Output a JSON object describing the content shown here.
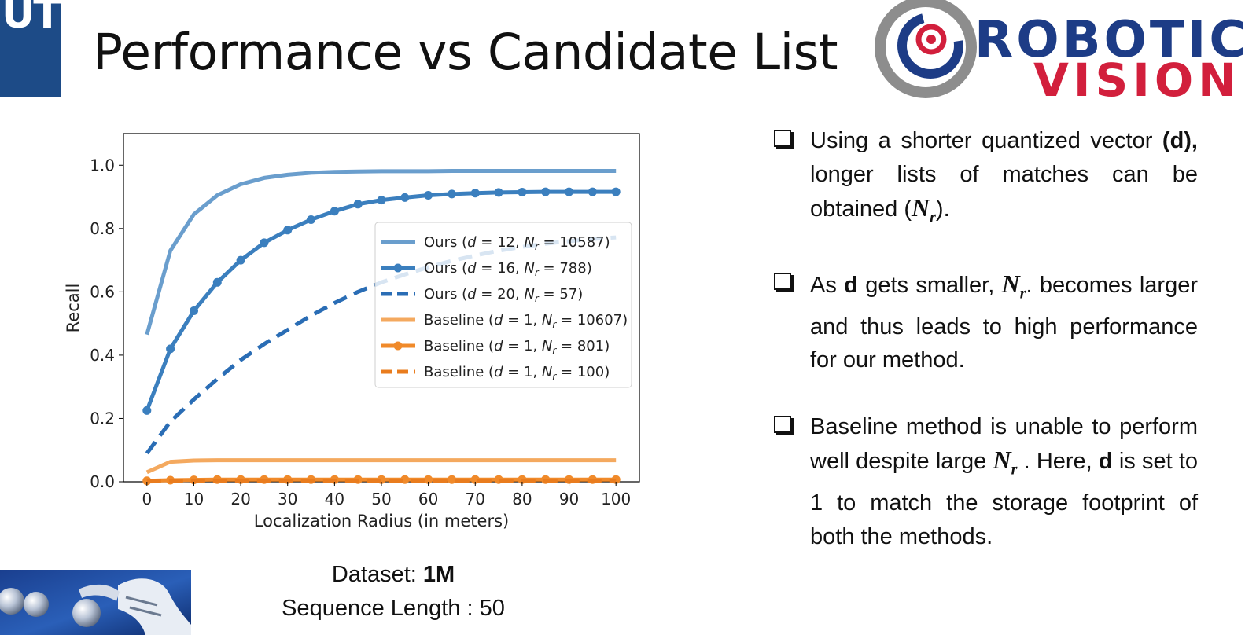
{
  "header": {
    "logo_text": "UT",
    "title": "Performance vs Candidate List",
    "brand_logo": {
      "line1": "ROBOTIC",
      "line2": "VISION",
      "colors": {
        "gray": "#8d8d8d",
        "navy": "#1d3c86",
        "red": "#d21f3c"
      }
    }
  },
  "chart_data": {
    "type": "line",
    "xlabel": "Localization Radius (in meters)",
    "ylabel": "Recall",
    "xlim": [
      -5,
      105
    ],
    "ylim": [
      0,
      1.1
    ],
    "xticks": [
      0,
      10,
      20,
      30,
      40,
      50,
      60,
      70,
      80,
      90,
      100
    ],
    "xtick_labels": [
      "0",
      "10",
      "20",
      "30",
      "40",
      "50",
      "60",
      "70",
      "80",
      "90",
      "100"
    ],
    "yticks": [
      0.0,
      0.2,
      0.4,
      0.6,
      0.8,
      1.0
    ],
    "ytick_labels": [
      "0.0",
      "0.2",
      "0.4",
      "0.6",
      "0.8",
      "1.0"
    ],
    "grid": false,
    "legend_position": "center-right",
    "x": [
      0,
      5,
      10,
      15,
      20,
      25,
      30,
      35,
      40,
      45,
      50,
      55,
      60,
      65,
      70,
      75,
      80,
      85,
      90,
      95,
      100
    ],
    "series": [
      {
        "name": "Ours (d = 12, Nr = 10587)",
        "legend": {
          "prefix": "Ours (",
          "d": "12",
          "n": "10587"
        },
        "color": "#6a9ecd",
        "style": "solid",
        "marker": false,
        "values": [
          0.465,
          0.73,
          0.845,
          0.905,
          0.94,
          0.96,
          0.97,
          0.976,
          0.979,
          0.98,
          0.981,
          0.981,
          0.981,
          0.982,
          0.982,
          0.982,
          0.982,
          0.982,
          0.982,
          0.982,
          0.982
        ]
      },
      {
        "name": "Ours (d = 16, Nr = 788)",
        "legend": {
          "prefix": "Ours (",
          "d": "16",
          "n": "788"
        },
        "color": "#3b7fbe",
        "style": "solid",
        "marker": true,
        "values": [
          0.225,
          0.42,
          0.54,
          0.63,
          0.7,
          0.755,
          0.795,
          0.828,
          0.855,
          0.877,
          0.89,
          0.898,
          0.905,
          0.909,
          0.912,
          0.914,
          0.915,
          0.916,
          0.916,
          0.916,
          0.916
        ]
      },
      {
        "name": "Ours (d = 20, Nr = 57)",
        "legend": {
          "prefix": "Ours (",
          "d": "20",
          "n": "57"
        },
        "color": "#2a6db5",
        "style": "dashed",
        "marker": false,
        "values": [
          0.09,
          0.19,
          0.26,
          0.325,
          0.385,
          0.435,
          0.48,
          0.525,
          0.565,
          0.6,
          0.63,
          0.655,
          0.678,
          0.698,
          0.715,
          0.73,
          0.742,
          0.752,
          0.76,
          0.767,
          0.772
        ]
      },
      {
        "name": "Baseline (d = 1, Nr = 10607)",
        "legend": {
          "prefix": "Baseline (",
          "d": "1",
          "n": "10607"
        },
        "color": "#f4a95f",
        "style": "solid",
        "marker": false,
        "values": [
          0.03,
          0.063,
          0.067,
          0.068,
          0.068,
          0.068,
          0.068,
          0.068,
          0.068,
          0.068,
          0.068,
          0.068,
          0.068,
          0.068,
          0.068,
          0.068,
          0.068,
          0.068,
          0.068,
          0.068,
          0.068
        ]
      },
      {
        "name": "Baseline (d = 1, Nr = 801)",
        "legend": {
          "prefix": "Baseline (",
          "d": "1",
          "n": "801"
        },
        "color": "#f08a2a",
        "style": "solid",
        "marker": true,
        "values": [
          0.003,
          0.005,
          0.006,
          0.007,
          0.007,
          0.007,
          0.007,
          0.007,
          0.007,
          0.007,
          0.007,
          0.007,
          0.007,
          0.007,
          0.007,
          0.007,
          0.007,
          0.007,
          0.007,
          0.007,
          0.007
        ]
      },
      {
        "name": "Baseline (d = 1, Nr = 100)",
        "legend": {
          "prefix": "Baseline (",
          "d": "1",
          "n": "100"
        },
        "color": "#e97c1e",
        "style": "dashed",
        "marker": false,
        "values": [
          0.001,
          0.002,
          0.002,
          0.002,
          0.002,
          0.002,
          0.002,
          0.002,
          0.002,
          0.002,
          0.002,
          0.002,
          0.002,
          0.002,
          0.002,
          0.002,
          0.002,
          0.002,
          0.002,
          0.002,
          0.002
        ]
      }
    ]
  },
  "bullets": [
    {
      "intro": "Using a shorter quantized vector",
      "bold": "(d),",
      "rest": "longer lists of matches can be obtained (",
      "nr_symbol": "N",
      "nr_sub": "r",
      "end": ")."
    },
    {
      "intro": "As",
      "bold": "d",
      "rest": "gets smaller,",
      "nr_symbol": "N",
      "nr_sub": "r",
      "end": ". becomes larger and thus leads to high performance for our method."
    },
    {
      "intro": "Baseline method is unable to perform well despite large",
      "nr_symbol": "N",
      "nr_sub": "r",
      "mid": ". Here,",
      "bold": "d",
      "end": "is set to 1 to match the storage footprint of both the methods."
    }
  ],
  "footer": {
    "dataset_label": "Dataset:",
    "dataset_value": "1M",
    "sequence_text": "Sequence Length : 50"
  }
}
